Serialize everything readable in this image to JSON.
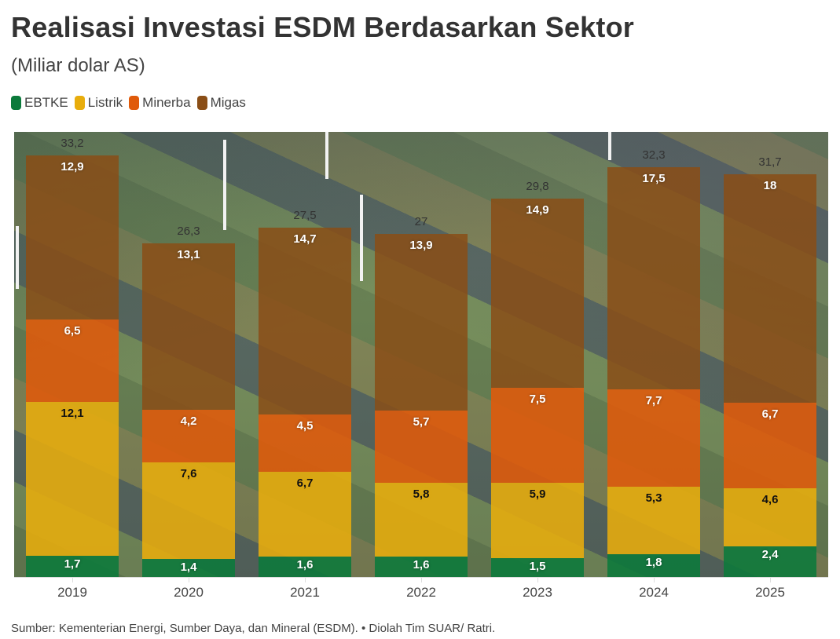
{
  "header": {
    "title": "Realisasi Investasi ESDM Berdasarkan Sektor",
    "subtitle": "(Miliar dolar AS)"
  },
  "legend": [
    {
      "label": "EBTKE",
      "color": "#0b7a3b"
    },
    {
      "label": "Listrik",
      "color": "#e8ad0c"
    },
    {
      "label": "Minerba",
      "color": "#e05a0a"
    },
    {
      "label": "Migas",
      "color": "#8a4e16"
    }
  ],
  "footer": {
    "source": "Sumber: Kementerian Energi, Sumber Daya, dan Mineral (ESDM). • Diolah Tim SUAR/ Ratri."
  },
  "chart_data": {
    "type": "bar",
    "stacked": true,
    "title": "Realisasi Investasi ESDM Berdasarkan Sektor",
    "subtitle": "(Miliar dolar AS)",
    "xlabel": "",
    "ylabel": "Miliar dolar AS",
    "categories": [
      "2019",
      "2020",
      "2021",
      "2022",
      "2023",
      "2024",
      "2025"
    ],
    "series": [
      {
        "name": "EBTKE",
        "color": "#0b7a3b",
        "values": [
          1.7,
          1.4,
          1.6,
          1.6,
          1.5,
          1.8,
          2.4
        ],
        "labels": [
          "1,7",
          "1,4",
          "1,6",
          "1,6",
          "1,5",
          "1,8",
          "2,4"
        ]
      },
      {
        "name": "Listrik",
        "color": "#e8ad0c",
        "values": [
          12.1,
          7.6,
          6.7,
          5.8,
          5.9,
          5.3,
          4.6
        ],
        "labels": [
          "12,1",
          "7,6",
          "6,7",
          "5,8",
          "5,9",
          "5,3",
          "4,6"
        ]
      },
      {
        "name": "Minerba",
        "color": "#e05a0a",
        "values": [
          6.5,
          4.2,
          4.5,
          5.7,
          7.5,
          7.7,
          6.7
        ],
        "labels": [
          "6,5",
          "4,2",
          "4,5",
          "5,7",
          "7,5",
          "7,7",
          "6,7"
        ]
      },
      {
        "name": "Migas",
        "color": "#8a4e16",
        "values": [
          12.9,
          13.1,
          14.7,
          13.9,
          14.9,
          17.5,
          18
        ],
        "labels": [
          "12,9",
          "13,1",
          "14,7",
          "13,9",
          "14,9",
          "17,5",
          "18"
        ]
      }
    ],
    "totals": [
      33.2,
      26.3,
      27.5,
      27,
      29.8,
      32.3,
      31.7
    ],
    "total_labels": [
      "33,2",
      "26,3",
      "27,5",
      "27",
      "29,8",
      "32,3",
      "31,7"
    ],
    "legend_position": "top-left",
    "grid": false,
    "background": "aerial photo of farmland with wind turbines",
    "ylim": [
      0,
      35
    ]
  }
}
